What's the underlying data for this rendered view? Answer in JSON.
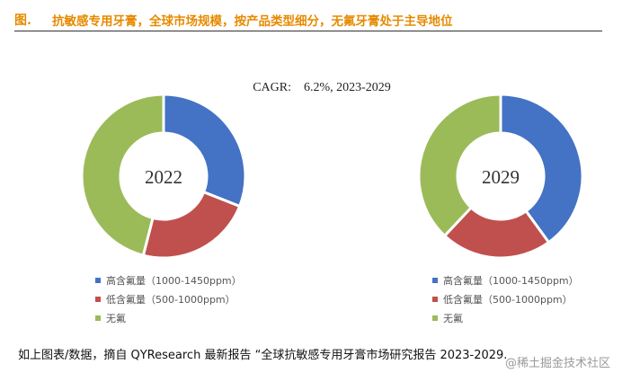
{
  "header": {
    "fig_label": "图.",
    "title": "抗敏感专用牙膏，全球市场规模，按产品类型细分，无氟牙膏处于主导地位"
  },
  "chart_data": {
    "type": "pie",
    "variant": "donut",
    "annotation": "CAGR:    6.2%, 2023-2029",
    "categories": [
      "高含氟量（1000-1450ppm）",
      "低含氟量（500-1000ppm）",
      "无氟"
    ],
    "colors": [
      "#4472C4",
      "#C0504D",
      "#9BBB59"
    ],
    "charts": [
      {
        "center_label": "2022",
        "values": [
          31,
          23,
          46
        ]
      },
      {
        "center_label": "2029",
        "values": [
          40,
          22,
          38
        ]
      }
    ]
  },
  "caption": "如上图表/数据，摘自 QYResearch 最新报告 “全球抗敏感专用牙膏市场研究报告 2023-2029.",
  "watermark": "@稀土掘金技术社区"
}
